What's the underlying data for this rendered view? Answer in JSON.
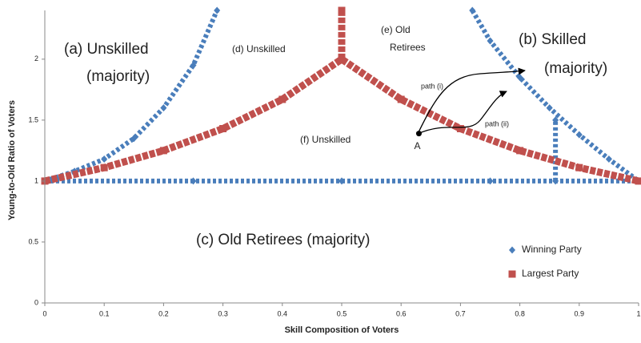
{
  "chart_data": {
    "type": "line",
    "x_label": "Skill Composition of Voters",
    "y_label": "Young-to-Old Ratio of Voters",
    "xlim": [
      0,
      1
    ],
    "ylim": [
      0,
      2.4
    ],
    "xticks": [
      0,
      0.1,
      0.2,
      0.3,
      0.4,
      0.5,
      0.6,
      0.7,
      0.8,
      0.9,
      1
    ],
    "yticks": [
      0,
      0.5,
      1,
      1.5,
      2
    ],
    "legend": "lower right",
    "series": [
      {
        "name": "Winning Party",
        "color": "#4a7ebb",
        "marker": "diamond",
        "x": [
          0,
          0.25,
          0.5,
          0.75,
          1,
          null,
          0,
          0.05,
          0.1,
          0.15,
          0.2,
          0.25,
          0.29,
          null,
          0.72,
          0.75,
          0.8,
          0.85,
          0.9,
          0.95,
          1,
          null,
          0.86,
          0.86
        ],
        "values": [
          1,
          1,
          1,
          1,
          1,
          null,
          1,
          1.08,
          1.18,
          1.35,
          1.6,
          1.95,
          2.4,
          null,
          2.4,
          2.15,
          1.85,
          1.6,
          1.38,
          1.18,
          1,
          null,
          1,
          1.5
        ]
      },
      {
        "name": "Largest Party",
        "color": "#c0504d",
        "marker": "square",
        "x": [
          0,
          0.1,
          0.2,
          0.3,
          0.4,
          0.5,
          0.6,
          0.7,
          0.8,
          0.9,
          1,
          null,
          0.5,
          0.5
        ],
        "values": [
          1,
          1.11,
          1.25,
          1.43,
          1.67,
          2,
          1.67,
          1.43,
          1.25,
          1.11,
          1,
          null,
          2,
          2.4
        ]
      }
    ],
    "point_a": {
      "label": "A",
      "x": 0.63,
      "y": 1.39
    },
    "annotations": [
      "(a) Unskilled",
      "(majority)",
      "(d) Unskilled",
      "(e) Old",
      "Retirees",
      "(b) Skilled",
      "(majority)",
      "(f) Unskilled",
      "(c) Old Retirees (majority)",
      "path (i)",
      "path (ii)"
    ]
  }
}
